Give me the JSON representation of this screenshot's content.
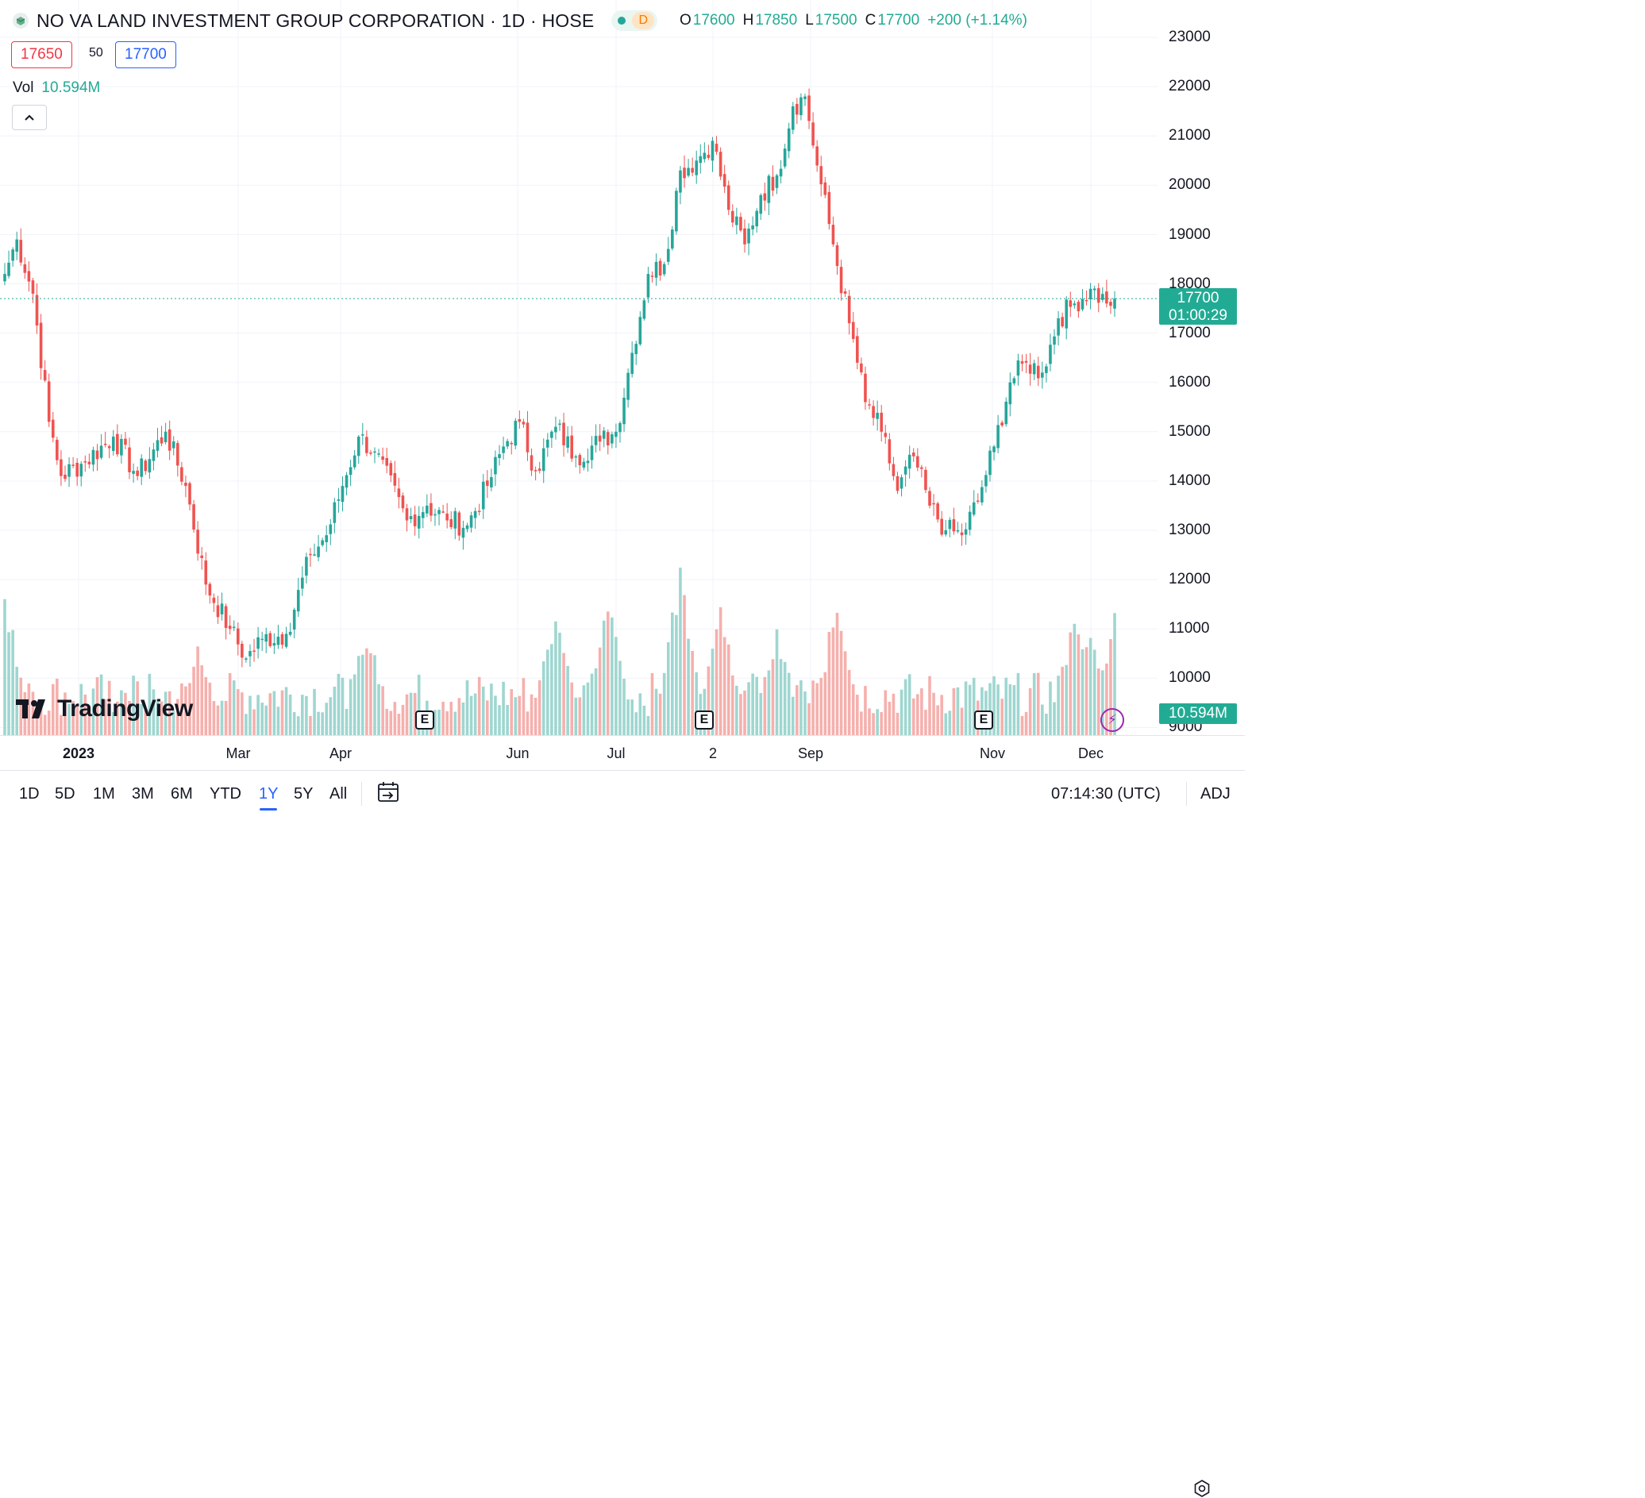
{
  "legend": {
    "symbol": "NO VA LAND INVESTMENT GROUP CORPORATION · 1D · HOSE",
    "session": "D",
    "o_label": "O",
    "o": "17600",
    "h_label": "H",
    "h": "17850",
    "l_label": "L",
    "l": "17500",
    "c_label": "C",
    "c": "17700",
    "change": "+200 (+1.14%)"
  },
  "quote": {
    "bid": "17650",
    "spread": "50",
    "ask": "17700"
  },
  "volume": {
    "label": "Vol",
    "value": "10.594M"
  },
  "axis_tags": {
    "last_price": "17700",
    "countdown": "01:00:29",
    "volume": "10.594M"
  },
  "earnings_marker": "E",
  "brand": "TradingView",
  "ranges": [
    "1D",
    "5D",
    "1M",
    "3M",
    "6M",
    "YTD",
    "1Y",
    "5Y",
    "All"
  ],
  "active_range": "1Y",
  "clock": "07:14:30 (UTC)",
  "adj": "ADJ",
  "colors": {
    "up": "#26a69a",
    "down": "#ef5350",
    "up_vol": "#9fd6d0",
    "down_vol": "#f5b0ad",
    "accent": "#2962ff"
  },
  "chart_data": {
    "type": "candlestick",
    "title": "NO VA LAND INVESTMENT GROUP CORPORATION · 1D · HOSE",
    "y_ticks": [
      23000,
      22000,
      21000,
      20000,
      19000,
      18000,
      17000,
      16000,
      15000,
      14000,
      13000,
      12000,
      11000,
      10000,
      9000
    ],
    "ylim": [
      8850,
      23000
    ],
    "x_ticks": [
      "2023",
      "Mar",
      "Apr",
      "Jun",
      "Jul",
      "2",
      "Sep",
      "Nov",
      "Dec"
    ],
    "last_price": 17700,
    "anchors": [
      {
        "i": 0,
        "p": 18200
      },
      {
        "i": 3,
        "p": 18900
      },
      {
        "i": 7,
        "p": 17800
      },
      {
        "i": 11,
        "p": 15200
      },
      {
        "i": 14,
        "p": 14100
      },
      {
        "i": 20,
        "p": 14400
      },
      {
        "i": 27,
        "p": 14900
      },
      {
        "i": 33,
        "p": 14100
      },
      {
        "i": 40,
        "p": 15000
      },
      {
        "i": 45,
        "p": 13900
      },
      {
        "i": 50,
        "p": 11900
      },
      {
        "i": 56,
        "p": 11000
      },
      {
        "i": 60,
        "p": 10400
      },
      {
        "i": 64,
        "p": 10800
      },
      {
        "i": 70,
        "p": 10900
      },
      {
        "i": 76,
        "p": 12500
      },
      {
        "i": 80,
        "p": 12900
      },
      {
        "i": 84,
        "p": 13900
      },
      {
        "i": 88,
        "p": 14900
      },
      {
        "i": 92,
        "p": 14600
      },
      {
        "i": 100,
        "p": 13200
      },
      {
        "i": 105,
        "p": 13500
      },
      {
        "i": 110,
        "p": 13200
      },
      {
        "i": 115,
        "p": 13100
      },
      {
        "i": 120,
        "p": 13900
      },
      {
        "i": 124,
        "p": 14700
      },
      {
        "i": 128,
        "p": 15200
      },
      {
        "i": 132,
        "p": 14200
      },
      {
        "i": 137,
        "p": 15100
      },
      {
        "i": 142,
        "p": 14500
      },
      {
        "i": 148,
        "p": 14800
      },
      {
        "i": 152,
        "p": 15000
      },
      {
        "i": 156,
        "p": 16600
      },
      {
        "i": 160,
        "p": 18200
      },
      {
        "i": 164,
        "p": 18400
      },
      {
        "i": 168,
        "p": 20300
      },
      {
        "i": 172,
        "p": 20500
      },
      {
        "i": 176,
        "p": 20900
      },
      {
        "i": 180,
        "p": 19500
      },
      {
        "i": 184,
        "p": 18800
      },
      {
        "i": 188,
        "p": 19800
      },
      {
        "i": 192,
        "p": 20200
      },
      {
        "i": 196,
        "p": 21600
      },
      {
        "i": 199,
        "p": 21800
      },
      {
        "i": 202,
        "p": 20400
      },
      {
        "i": 206,
        "p": 18800
      },
      {
        "i": 210,
        "p": 17200
      },
      {
        "i": 214,
        "p": 15600
      },
      {
        "i": 218,
        "p": 15000
      },
      {
        "i": 222,
        "p": 13800
      },
      {
        "i": 226,
        "p": 14500
      },
      {
        "i": 230,
        "p": 13500
      },
      {
        "i": 234,
        "p": 13000
      },
      {
        "i": 238,
        "p": 12900
      },
      {
        "i": 242,
        "p": 13600
      },
      {
        "i": 246,
        "p": 14700
      },
      {
        "i": 250,
        "p": 16000
      },
      {
        "i": 254,
        "p": 16400
      },
      {
        "i": 258,
        "p": 16200
      },
      {
        "i": 262,
        "p": 17300
      },
      {
        "i": 266,
        "p": 17600
      },
      {
        "i": 270,
        "p": 17900
      },
      {
        "i": 274,
        "p": 17600
      },
      {
        "i": 276,
        "p": 17700
      }
    ],
    "volume_peaks_m": [
      {
        "i": 0,
        "v": 12.0
      },
      {
        "i": 4,
        "v": 5.2
      },
      {
        "i": 30,
        "v": 4.0
      },
      {
        "i": 48,
        "v": 7.5
      },
      {
        "i": 90,
        "v": 9.0
      },
      {
        "i": 137,
        "v": 11.0
      },
      {
        "i": 150,
        "v": 11.5
      },
      {
        "i": 168,
        "v": 14.2
      },
      {
        "i": 178,
        "v": 11.0
      },
      {
        "i": 192,
        "v": 8.5
      },
      {
        "i": 207,
        "v": 11.5
      },
      {
        "i": 266,
        "v": 10.0
      },
      {
        "i": 270,
        "v": 9.0
      },
      {
        "i": 276,
        "v": 10.6
      }
    ]
  }
}
